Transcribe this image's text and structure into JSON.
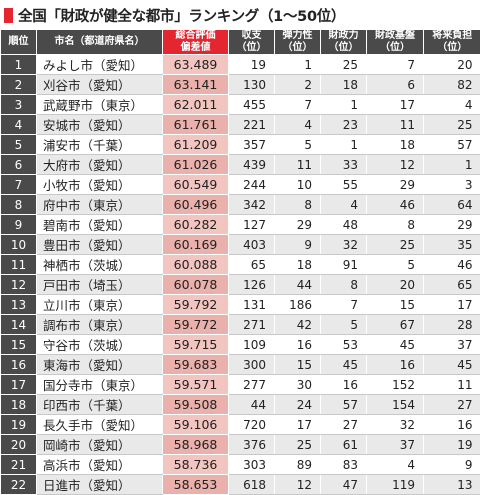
{
  "title": "全国「財政が健全な都市」ランキング（1〜50位）",
  "accent_color": "#e3262f",
  "columns": [
    "順位",
    "市名（都道府県名）",
    "総合評価\n偏差値",
    "収支\n（位）",
    "弾力性\n（位）",
    "財政力\n（位）",
    "財政基盤\n（位）",
    "将来負担\n（位）"
  ],
  "rows": [
    {
      "rank": "1",
      "name": "みよし市（愛知）",
      "score": "63.489",
      "v1": "19",
      "v2": "1",
      "v3": "25",
      "v4": "7",
      "v5": "20"
    },
    {
      "rank": "2",
      "name": "刈谷市（愛知）",
      "score": "63.141",
      "v1": "130",
      "v2": "2",
      "v3": "18",
      "v4": "6",
      "v5": "82"
    },
    {
      "rank": "3",
      "name": "武蔵野市（東京）",
      "score": "62.011",
      "v1": "455",
      "v2": "7",
      "v3": "1",
      "v4": "17",
      "v5": "4"
    },
    {
      "rank": "4",
      "name": "安城市（愛知）",
      "score": "61.761",
      "v1": "221",
      "v2": "4",
      "v3": "23",
      "v4": "11",
      "v5": "25"
    },
    {
      "rank": "5",
      "name": "浦安市（千葉）",
      "score": "61.209",
      "v1": "357",
      "v2": "5",
      "v3": "1",
      "v4": "18",
      "v5": "57"
    },
    {
      "rank": "6",
      "name": "大府市（愛知）",
      "score": "61.026",
      "v1": "439",
      "v2": "11",
      "v3": "33",
      "v4": "12",
      "v5": "1"
    },
    {
      "rank": "7",
      "name": "小牧市（愛知）",
      "score": "60.549",
      "v1": "244",
      "v2": "10",
      "v3": "55",
      "v4": "29",
      "v5": "3"
    },
    {
      "rank": "8",
      "name": "府中市（東京）",
      "score": "60.496",
      "v1": "342",
      "v2": "8",
      "v3": "4",
      "v4": "46",
      "v5": "64"
    },
    {
      "rank": "9",
      "name": "碧南市（愛知）",
      "score": "60.282",
      "v1": "127",
      "v2": "29",
      "v3": "48",
      "v4": "8",
      "v5": "29"
    },
    {
      "rank": "10",
      "name": "豊田市（愛知）",
      "score": "60.169",
      "v1": "403",
      "v2": "9",
      "v3": "32",
      "v4": "25",
      "v5": "35"
    },
    {
      "rank": "11",
      "name": "神栖市（茨城）",
      "score": "60.088",
      "v1": "65",
      "v2": "18",
      "v3": "91",
      "v4": "5",
      "v5": "46"
    },
    {
      "rank": "12",
      "name": "戸田市（埼玉）",
      "score": "60.078",
      "v1": "126",
      "v2": "44",
      "v3": "8",
      "v4": "20",
      "v5": "65"
    },
    {
      "rank": "13",
      "name": "立川市（東京）",
      "score": "59.792",
      "v1": "131",
      "v2": "186",
      "v3": "7",
      "v4": "15",
      "v5": "17"
    },
    {
      "rank": "14",
      "name": "調布市（東京）",
      "score": "59.772",
      "v1": "271",
      "v2": "42",
      "v3": "5",
      "v4": "67",
      "v5": "28"
    },
    {
      "rank": "15",
      "name": "守谷市（茨城）",
      "score": "59.715",
      "v1": "109",
      "v2": "16",
      "v3": "53",
      "v4": "45",
      "v5": "37"
    },
    {
      "rank": "16",
      "name": "東海市（愛知）",
      "score": "59.683",
      "v1": "300",
      "v2": "15",
      "v3": "45",
      "v4": "16",
      "v5": "45"
    },
    {
      "rank": "17",
      "name": "国分寺市（東京）",
      "score": "59.571",
      "v1": "277",
      "v2": "30",
      "v3": "16",
      "v4": "152",
      "v5": "11"
    },
    {
      "rank": "18",
      "name": "印西市（千葉）",
      "score": "59.508",
      "v1": "44",
      "v2": "24",
      "v3": "57",
      "v4": "154",
      "v5": "27"
    },
    {
      "rank": "19",
      "name": "長久手市（愛知）",
      "score": "59.106",
      "v1": "720",
      "v2": "17",
      "v3": "27",
      "v4": "32",
      "v5": "16"
    },
    {
      "rank": "20",
      "name": "岡崎市（愛知）",
      "score": "58.968",
      "v1": "376",
      "v2": "25",
      "v3": "61",
      "v4": "37",
      "v5": "19"
    },
    {
      "rank": "21",
      "name": "高浜市（愛知）",
      "score": "58.736",
      "v1": "303",
      "v2": "89",
      "v3": "83",
      "v4": "4",
      "v5": "9"
    },
    {
      "rank": "22",
      "name": "日進市（愛知）",
      "score": "58.653",
      "v1": "618",
      "v2": "12",
      "v3": "47",
      "v4": "119",
      "v5": "13"
    }
  ]
}
